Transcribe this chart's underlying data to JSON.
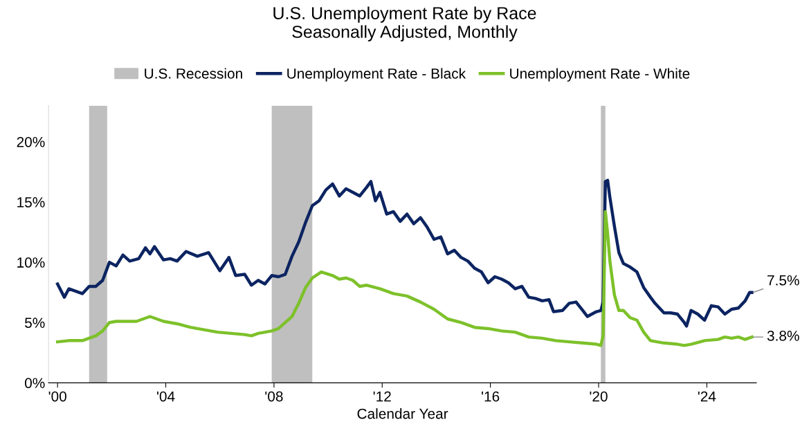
{
  "chart_data": {
    "type": "line",
    "title": "U.S. Unemployment Rate by Race\nSeasonally Adjusted, Monthly",
    "xlabel": "Calendar Year",
    "xlim": [
      "1999-09",
      "2025-11"
    ],
    "xticks": [
      {
        "value": "2000-01",
        "label": "'00"
      },
      {
        "value": "2004-01",
        "label": "'04"
      },
      {
        "value": "2008-01",
        "label": "'08"
      },
      {
        "value": "2012-01",
        "label": "'12"
      },
      {
        "value": "2016-01",
        "label": "'16"
      },
      {
        "value": "2020-01",
        "label": "'20"
      },
      {
        "value": "2024-01",
        "label": "'24"
      }
    ],
    "ylim": [
      0,
      23
    ],
    "yticks": [
      {
        "value": 0,
        "label": "0%"
      },
      {
        "value": 5,
        "label": "5%"
      },
      {
        "value": 10,
        "label": "10%"
      },
      {
        "value": 15,
        "label": "15%"
      },
      {
        "value": 20,
        "label": "20%"
      }
    ],
    "grid": false,
    "legend": "top",
    "line_style": "solid",
    "marker": "none",
    "bands": [
      {
        "axis": "x",
        "from": "2001-03",
        "to": "2001-11",
        "label": "U.S. Recession",
        "color": "#bfbfbf"
      },
      {
        "axis": "x",
        "from": "2007-12",
        "to": "2009-06",
        "color": "#bfbfbf"
      },
      {
        "axis": "x",
        "from": "2020-02",
        "to": "2020-04",
        "color": "#bfbfbf"
      }
    ],
    "series": [
      {
        "name": "Unemployment Rate - Black",
        "color": "#0c2461",
        "x": [
          "2000-01",
          "2000-04",
          "2000-06",
          "2000-09",
          "2000-12",
          "2001-03",
          "2001-06",
          "2001-09",
          "2001-12",
          "2002-03",
          "2002-06",
          "2002-09",
          "2003-01",
          "2003-04",
          "2003-06",
          "2003-08",
          "2003-12",
          "2004-03",
          "2004-06",
          "2004-10",
          "2005-03",
          "2005-08",
          "2006-01",
          "2006-05",
          "2006-08",
          "2006-12",
          "2007-03",
          "2007-06",
          "2007-09",
          "2007-12",
          "2008-03",
          "2008-06",
          "2008-09",
          "2008-12",
          "2009-03",
          "2009-06",
          "2009-09",
          "2009-12",
          "2010-03",
          "2010-06",
          "2010-09",
          "2010-12",
          "2011-03",
          "2011-06",
          "2011-08",
          "2011-10",
          "2011-12",
          "2012-03",
          "2012-06",
          "2012-09",
          "2012-12",
          "2013-03",
          "2013-06",
          "2013-09",
          "2013-12",
          "2014-03",
          "2014-06",
          "2014-09",
          "2014-12",
          "2015-03",
          "2015-06",
          "2015-09",
          "2015-12",
          "2016-03",
          "2016-06",
          "2016-09",
          "2016-12",
          "2017-03",
          "2017-06",
          "2017-09",
          "2017-12",
          "2018-03",
          "2018-05",
          "2018-09",
          "2018-12",
          "2019-03",
          "2019-06",
          "2019-08",
          "2019-12",
          "2020-02",
          "2020-03",
          "2020-04",
          "2020-05",
          "2020-06",
          "2020-08",
          "2020-10",
          "2020-12",
          "2021-03",
          "2021-06",
          "2021-09",
          "2021-12",
          "2022-02",
          "2022-06",
          "2022-09",
          "2022-12",
          "2023-03",
          "2023-04",
          "2023-06",
          "2023-09",
          "2023-12",
          "2024-03",
          "2024-06",
          "2024-09",
          "2024-12",
          "2025-03",
          "2025-06",
          "2025-08",
          "2025-09"
        ],
        "values": [
          8.2,
          7.1,
          7.8,
          7.6,
          7.4,
          8.0,
          8.0,
          8.5,
          10.0,
          9.7,
          10.6,
          10.1,
          10.3,
          11.2,
          10.7,
          11.3,
          10.2,
          10.3,
          10.1,
          10.9,
          10.5,
          10.8,
          9.3,
          10.4,
          8.9,
          9.0,
          8.1,
          8.5,
          8.2,
          8.9,
          8.8,
          9.0,
          10.5,
          11.7,
          13.3,
          14.7,
          15.1,
          16.0,
          16.5,
          15.5,
          16.1,
          15.8,
          15.5,
          16.2,
          16.7,
          15.1,
          15.8,
          14.0,
          14.2,
          13.4,
          14.0,
          13.2,
          13.7,
          12.9,
          11.9,
          12.1,
          10.7,
          11.0,
          10.4,
          10.1,
          9.5,
          9.2,
          8.3,
          8.8,
          8.6,
          8.3,
          7.8,
          8.0,
          7.1,
          7.0,
          6.8,
          6.9,
          5.9,
          6.0,
          6.6,
          6.7,
          6.0,
          5.5,
          5.9,
          6.0,
          6.7,
          16.7,
          16.8,
          15.4,
          13.0,
          10.8,
          9.9,
          9.6,
          9.2,
          7.9,
          7.1,
          6.6,
          5.8,
          5.8,
          5.7,
          5.0,
          4.7,
          6.0,
          5.7,
          5.2,
          6.4,
          6.3,
          5.7,
          6.1,
          6.2,
          6.8,
          7.5,
          7.5
        ]
      },
      {
        "name": "Unemployment Rate - White",
        "color": "#7dc12a",
        "x": [
          "2000-01",
          "2000-06",
          "2000-12",
          "2001-03",
          "2001-06",
          "2001-09",
          "2001-12",
          "2002-03",
          "2002-06",
          "2002-12",
          "2003-06",
          "2003-12",
          "2004-06",
          "2004-12",
          "2005-06",
          "2005-12",
          "2006-06",
          "2006-12",
          "2007-03",
          "2007-06",
          "2007-12",
          "2008-03",
          "2008-06",
          "2008-09",
          "2008-12",
          "2009-03",
          "2009-06",
          "2009-10",
          "2010-03",
          "2010-06",
          "2010-09",
          "2010-12",
          "2011-03",
          "2011-06",
          "2011-12",
          "2012-06",
          "2012-12",
          "2013-06",
          "2013-12",
          "2014-06",
          "2014-12",
          "2015-06",
          "2015-12",
          "2016-06",
          "2016-12",
          "2017-06",
          "2017-12",
          "2018-06",
          "2018-12",
          "2019-06",
          "2019-12",
          "2020-02",
          "2020-03",
          "2020-04",
          "2020-05",
          "2020-06",
          "2020-08",
          "2020-10",
          "2020-12",
          "2021-03",
          "2021-06",
          "2021-09",
          "2021-12",
          "2022-06",
          "2022-12",
          "2023-03",
          "2023-06",
          "2023-12",
          "2024-06",
          "2024-09",
          "2024-12",
          "2025-03",
          "2025-06",
          "2025-09"
        ],
        "values": [
          3.4,
          3.5,
          3.5,
          3.7,
          3.9,
          4.3,
          5.0,
          5.1,
          5.1,
          5.1,
          5.5,
          5.1,
          4.9,
          4.6,
          4.4,
          4.2,
          4.1,
          4.0,
          3.9,
          4.1,
          4.3,
          4.5,
          5.0,
          5.5,
          6.6,
          7.9,
          8.7,
          9.2,
          8.9,
          8.6,
          8.7,
          8.5,
          8.0,
          8.1,
          7.8,
          7.4,
          7.2,
          6.7,
          6.1,
          5.3,
          5.0,
          4.6,
          4.5,
          4.3,
          4.2,
          3.8,
          3.7,
          3.5,
          3.4,
          3.3,
          3.2,
          3.1,
          3.9,
          14.2,
          12.4,
          10.1,
          7.3,
          6.0,
          6.0,
          5.4,
          5.2,
          4.2,
          3.5,
          3.3,
          3.2,
          3.1,
          3.2,
          3.5,
          3.6,
          3.8,
          3.7,
          3.8,
          3.6,
          3.8
        ]
      }
    ],
    "annotations": [
      {
        "text": "7.5%",
        "x": "2025-09",
        "y": 7.5
      },
      {
        "text": "3.8%",
        "x": "2025-09",
        "y": 3.8
      }
    ]
  }
}
